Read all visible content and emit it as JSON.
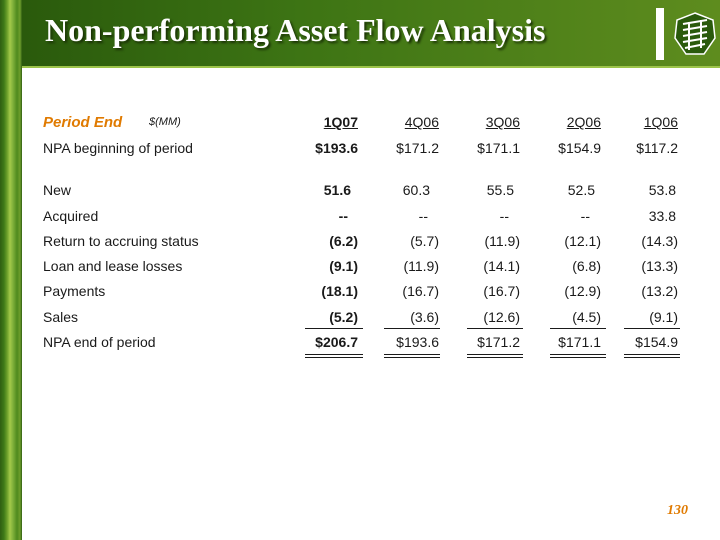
{
  "slide": {
    "title": "Non-performing Asset Flow Analysis",
    "page_number": "130",
    "colors": {
      "header_green": "#3d7414",
      "accent_orange": "#e07a00",
      "text": "#1a1a1a"
    }
  },
  "table": {
    "period_label": "Period End",
    "unit_label": "$(MM)",
    "columns": [
      "1Q07",
      "4Q06",
      "3Q06",
      "2Q06",
      "1Q06"
    ],
    "rows": [
      {
        "label": "NPA beginning of period",
        "values": [
          "$193.6",
          "$171.2",
          "$171.1",
          "$154.9",
          "$117.2"
        ]
      },
      {
        "label": "New",
        "values": [
          "51.6",
          "60.3",
          "55.5",
          "52.5",
          "53.8"
        ]
      },
      {
        "label": "Acquired",
        "values": [
          "--",
          "--",
          "--",
          "--",
          "33.8"
        ]
      },
      {
        "label": "Return to accruing status",
        "values": [
          "(6.2)",
          "(5.7)",
          "(11.9)",
          "(12.1)",
          "(14.3)"
        ]
      },
      {
        "label": "Loan and lease losses",
        "values": [
          "(9.1)",
          "(11.9)",
          "(14.1)",
          "(6.8)",
          "(13.3)"
        ]
      },
      {
        "label": "Payments",
        "values": [
          "(18.1)",
          "(16.7)",
          "(16.7)",
          "(12.9)",
          "(13.2)"
        ]
      },
      {
        "label": "Sales",
        "values": [
          "(5.2)",
          "(3.6)",
          "(12.6)",
          "(4.5)",
          "(9.1)"
        ]
      },
      {
        "label": "NPA end of period",
        "values": [
          "$206.7",
          "$193.6",
          "$171.2",
          "$171.1",
          "$154.9"
        ]
      }
    ]
  }
}
